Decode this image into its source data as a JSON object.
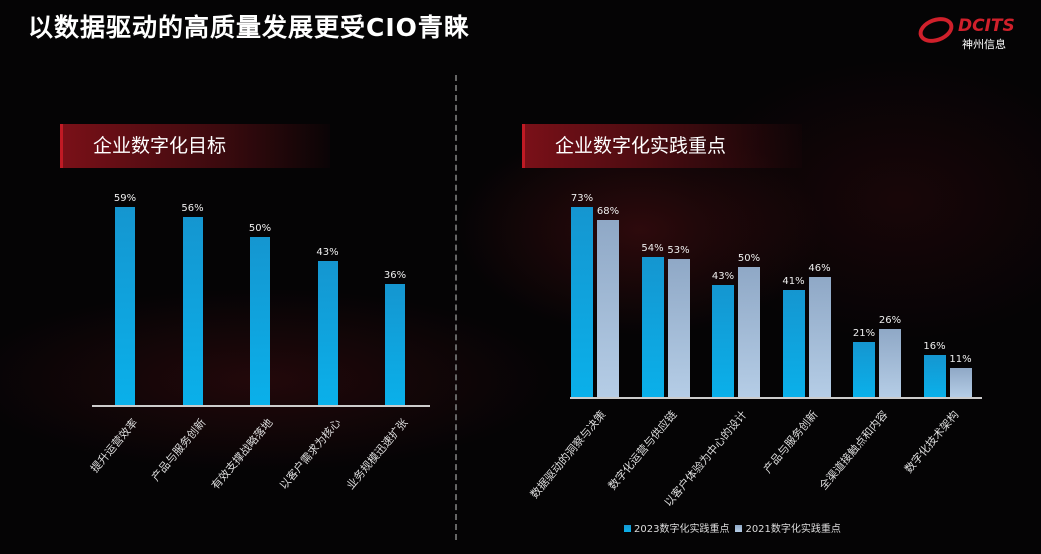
{
  "title": "以数据驱动的高质量发展更受CIO青睐",
  "logo": {
    "brand": "DCITS",
    "name": "神州信息"
  },
  "colors": {
    "accent": "#d0202b",
    "series2023": "#0ab0ea",
    "series2021": "#a8c0dc"
  },
  "chart_data": [
    {
      "type": "bar",
      "title": "企业数字化目标",
      "categories": [
        "提升运营效率",
        "产品与服务创新",
        "有效支撑战略落地",
        "以客户需求为核心",
        "业务规模迅速扩张"
      ],
      "values": [
        59,
        56,
        50,
        43,
        36
      ],
      "labels": [
        "59%",
        "56%",
        "50%",
        "43%",
        "36%"
      ],
      "unit": "%",
      "ylim": [
        0,
        65
      ],
      "grid": false
    },
    {
      "type": "bar",
      "title": "企业数字化实践重点",
      "categories": [
        "数据驱动的洞察与决策",
        "数字化运营与供应链",
        "以客户体验为中心的设计",
        "产品与服务创新",
        "全渠道接触点和内容",
        "数字化技术架构"
      ],
      "series": [
        {
          "name": "2023数字化实践重点",
          "values": [
            73,
            54,
            43,
            41,
            21,
            16
          ],
          "labels": [
            "73%",
            "54%",
            "43%",
            "41%",
            "21%",
            "16%"
          ]
        },
        {
          "name": "2021数字化实践重点",
          "values": [
            68,
            53,
            50,
            46,
            26,
            11
          ],
          "labels": [
            "68%",
            "53%",
            "50%",
            "46%",
            "26%",
            "11%"
          ]
        }
      ],
      "unit": "%",
      "ylim": [
        0,
        80
      ],
      "grid": false,
      "legend": "bottom"
    }
  ]
}
